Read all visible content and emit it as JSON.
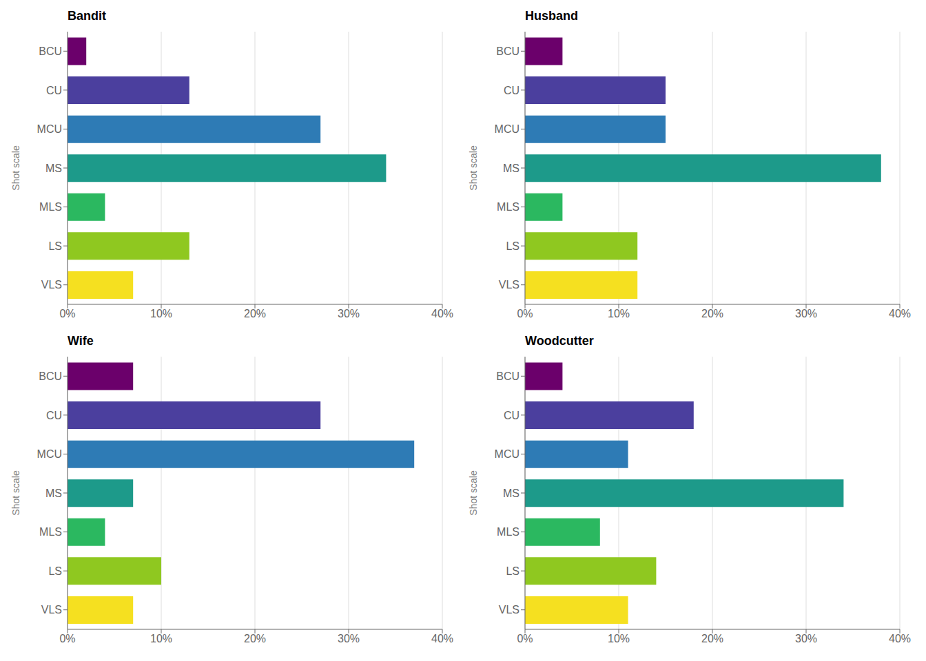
{
  "chart_data": [
    {
      "type": "bar",
      "title": "Bandit",
      "ylabel": "Shot scale",
      "orientation": "horizontal",
      "categories": [
        "BCU",
        "CU",
        "MCU",
        "MS",
        "MLS",
        "LS",
        "VLS"
      ],
      "values": [
        2.0,
        13.0,
        27.0,
        34.0,
        4.0,
        13.0,
        7.0
      ],
      "colors": [
        "#6B006B",
        "#4B3F9E",
        "#2E7BB5",
        "#1D9A8A",
        "#2BB860",
        "#8FC820",
        "#F5E020"
      ],
      "xlim": [
        0,
        40
      ],
      "xticks": [
        {
          "value": 0,
          "label": "0%"
        },
        {
          "value": 10,
          "label": "10%"
        },
        {
          "value": 20,
          "label": "20%"
        },
        {
          "value": 30,
          "label": "30%"
        },
        {
          "value": 40,
          "label": "40%"
        }
      ],
      "grid": true
    },
    {
      "type": "bar",
      "title": "Husband",
      "ylabel": "Shot scale",
      "orientation": "horizontal",
      "categories": [
        "BCU",
        "CU",
        "MCU",
        "MS",
        "MLS",
        "LS",
        "VLS"
      ],
      "values": [
        4.0,
        15.0,
        15.0,
        38.0,
        4.0,
        12.0,
        12.0
      ],
      "colors": [
        "#6B006B",
        "#4B3F9E",
        "#2E7BB5",
        "#1D9A8A",
        "#2BB860",
        "#8FC820",
        "#F5E020"
      ],
      "xlim": [
        0,
        40
      ],
      "xticks": [
        {
          "value": 0,
          "label": "0%"
        },
        {
          "value": 10,
          "label": "10%"
        },
        {
          "value": 20,
          "label": "20%"
        },
        {
          "value": 30,
          "label": "30%"
        },
        {
          "value": 40,
          "label": "40%"
        }
      ],
      "grid": true
    },
    {
      "type": "bar",
      "title": "Wife",
      "ylabel": "Shot scale",
      "orientation": "horizontal",
      "categories": [
        "BCU",
        "CU",
        "MCU",
        "MS",
        "MLS",
        "LS",
        "VLS"
      ],
      "values": [
        7.0,
        27.0,
        37.0,
        7.0,
        4.0,
        10.0,
        7.0
      ],
      "colors": [
        "#6B006B",
        "#4B3F9E",
        "#2E7BB5",
        "#1D9A8A",
        "#2BB860",
        "#8FC820",
        "#F5E020"
      ],
      "xlim": [
        0,
        40
      ],
      "xticks": [
        {
          "value": 0,
          "label": "0%"
        },
        {
          "value": 10,
          "label": "10%"
        },
        {
          "value": 20,
          "label": "20%"
        },
        {
          "value": 30,
          "label": "30%"
        },
        {
          "value": 40,
          "label": "40%"
        }
      ],
      "grid": true
    },
    {
      "type": "bar",
      "title": "Woodcutter",
      "ylabel": "Shot scale",
      "orientation": "horizontal",
      "categories": [
        "BCU",
        "CU",
        "MCU",
        "MS",
        "MLS",
        "LS",
        "VLS"
      ],
      "values": [
        4.0,
        18.0,
        11.0,
        34.0,
        8.0,
        14.0,
        11.0
      ],
      "colors": [
        "#6B006B",
        "#4B3F9E",
        "#2E7BB5",
        "#1D9A8A",
        "#2BB860",
        "#8FC820",
        "#F5E020"
      ],
      "xlim": [
        0,
        40
      ],
      "xticks": [
        {
          "value": 0,
          "label": "0%"
        },
        {
          "value": 10,
          "label": "10%"
        },
        {
          "value": 20,
          "label": "20%"
        },
        {
          "value": 30,
          "label": "30%"
        },
        {
          "value": 40,
          "label": "40%"
        }
      ],
      "grid": true
    }
  ]
}
